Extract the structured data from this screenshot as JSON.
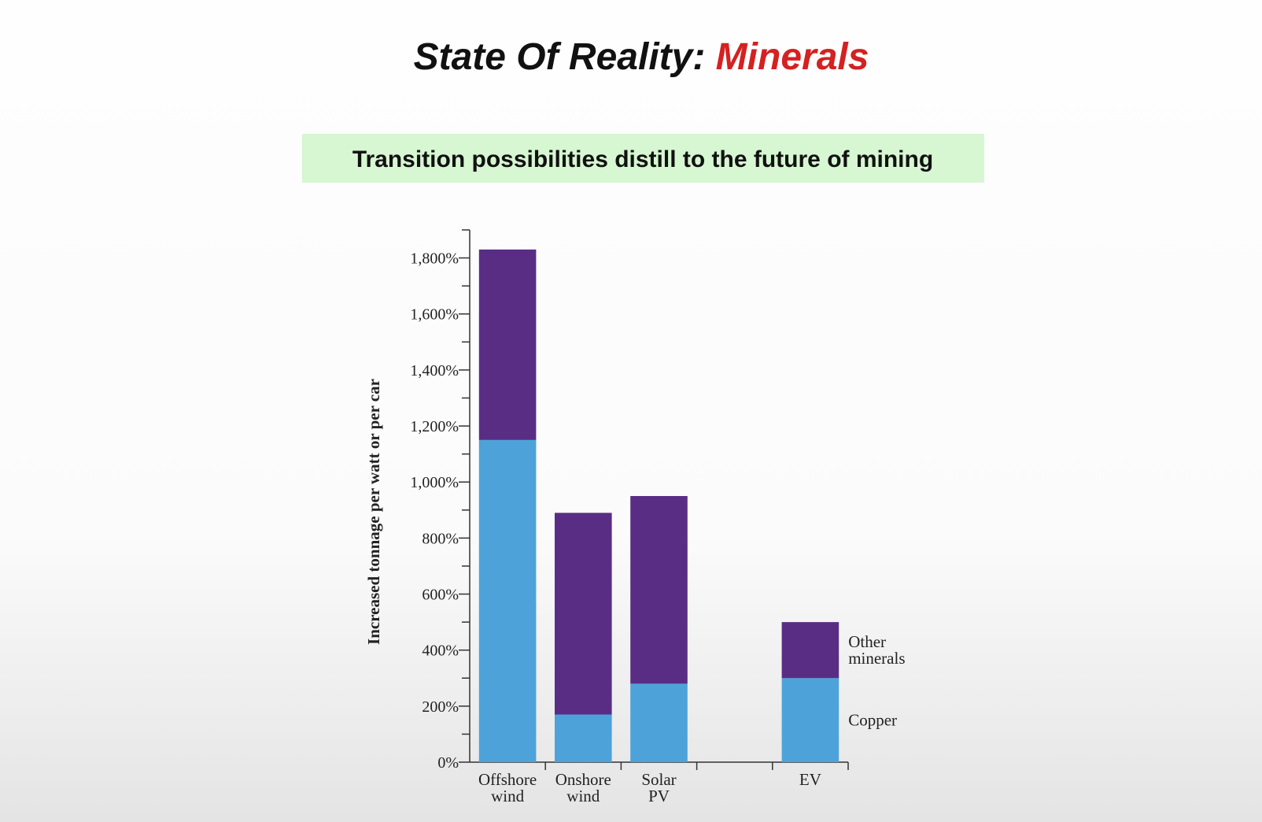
{
  "chart_data": {
    "type": "stacked_bar",
    "title": {
      "text": "State Of Reality:",
      "highlight": "Minerals"
    },
    "subtitle": "Transition possibilities distill to the future of mining",
    "y_label": "Increased tonnage per watt or per car",
    "categories": [
      "Offshore wind",
      "Onshore wind",
      "Solar PV",
      null,
      "EV"
    ],
    "series": [
      {
        "name": "Copper",
        "color": "#4da3d9",
        "values": [
          1150,
          170,
          280,
          null,
          300
        ]
      },
      {
        "name": "Other minerals",
        "color": "#5a2d85",
        "values": [
          680,
          720,
          670,
          null,
          200
        ]
      }
    ],
    "ylim": [
      0,
      1900
    ],
    "yticks": [
      {
        "value": 0,
        "label": "0%"
      },
      {
        "value": 200,
        "label": "200%"
      },
      {
        "value": 400,
        "label": "400%"
      },
      {
        "value": 600,
        "label": "600%"
      },
      {
        "value": 800,
        "label": "800%"
      },
      {
        "value": 1000,
        "label": "1,000%"
      },
      {
        "value": 1200,
        "label": "1,200%"
      },
      {
        "value": 1400,
        "label": "1,400%"
      },
      {
        "value": 1600,
        "label": "1,600%"
      },
      {
        "value": 1800,
        "label": "1,800%"
      }
    ],
    "yticks_minor": [
      100,
      300,
      500,
      700,
      900,
      1100,
      1300,
      1500,
      1700,
      1900
    ],
    "legend": "right",
    "title_highlight_color": "#d42121",
    "subtitle_background": "#d6f7d1"
  }
}
